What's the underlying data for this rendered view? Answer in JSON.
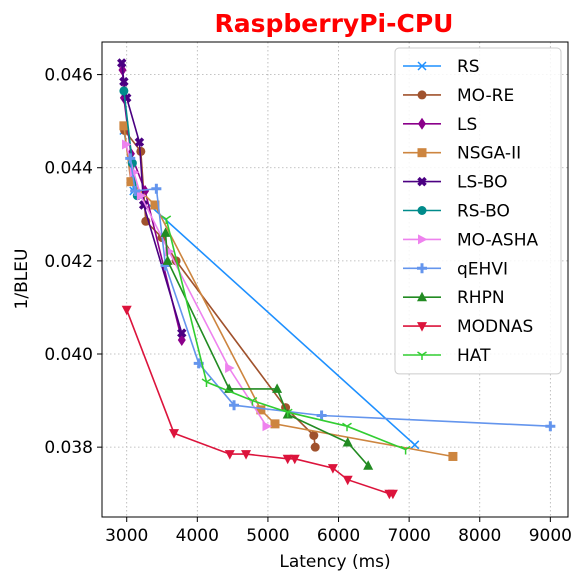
{
  "chart_data": {
    "type": "line",
    "title": "RaspberryPi-CPU",
    "title_color": "#ff0000",
    "xlabel": "Latency (ms)",
    "ylabel": "1/BLEU",
    "xlim": [
      2650,
      9250
    ],
    "ylim": [
      0.0365,
      0.0467
    ],
    "xticks": [
      3000,
      4000,
      5000,
      6000,
      7000,
      8000,
      9000
    ],
    "yticks": [
      0.038,
      0.04,
      0.042,
      0.044,
      0.046
    ],
    "grid": true,
    "legend_position": "top-right",
    "series": [
      {
        "name": "RS",
        "color": "#1e90ff",
        "marker": "x",
        "points": [
          [
            2960,
            0.0448
          ],
          [
            3100,
            0.0435
          ],
          [
            7080,
            0.03805
          ]
        ]
      },
      {
        "name": "MO-RE",
        "color": "#a0522d",
        "marker": "circle",
        "points": [
          [
            2970,
            0.0448
          ],
          [
            3200,
            0.04435
          ],
          [
            3270,
            0.04285
          ],
          [
            3500,
            0.0425
          ],
          [
            3700,
            0.042
          ],
          [
            5250,
            0.03885
          ],
          [
            5650,
            0.03825
          ],
          [
            5670,
            0.038
          ]
        ]
      },
      {
        "name": "LS",
        "color": "#8b008b",
        "marker": "diamond",
        "points": [
          [
            2940,
            0.0461
          ],
          [
            2960,
            0.0455
          ],
          [
            3060,
            0.0443
          ],
          [
            3260,
            0.0435
          ],
          [
            3780,
            0.0403
          ]
        ]
      },
      {
        "name": "NSGA-II",
        "color": "#cd853f",
        "marker": "square",
        "points": [
          [
            2960,
            0.0449
          ],
          [
            3060,
            0.0437
          ],
          [
            3400,
            0.0432
          ],
          [
            4900,
            0.0388
          ],
          [
            5100,
            0.0385
          ],
          [
            7620,
            0.0378
          ]
        ]
      },
      {
        "name": "LS-BO",
        "color": "#4b0082",
        "marker": "x-bold",
        "points": [
          [
            2930,
            0.04625
          ],
          [
            2960,
            0.04585
          ],
          [
            3000,
            0.0455
          ],
          [
            3180,
            0.04455
          ],
          [
            3240,
            0.0432
          ],
          [
            3780,
            0.04045
          ]
        ]
      },
      {
        "name": "RS-BO",
        "color": "#008b8b",
        "marker": "circle",
        "points": [
          [
            2960,
            0.04565
          ],
          [
            3080,
            0.0441
          ],
          [
            3150,
            0.0434
          ]
        ]
      },
      {
        "name": "MO-ASHA",
        "color": "#ee82ee",
        "marker": "triangle-right",
        "points": [
          [
            2990,
            0.0445
          ],
          [
            3100,
            0.0439
          ],
          [
            3200,
            0.0434
          ],
          [
            3600,
            0.0422
          ],
          [
            4450,
            0.0397
          ],
          [
            4980,
            0.03845
          ]
        ]
      },
      {
        "name": "qEHVI",
        "color": "#6495ed",
        "marker": "plus",
        "points": [
          [
            3050,
            0.0442
          ],
          [
            3120,
            0.0435
          ],
          [
            3420,
            0.04355
          ],
          [
            3550,
            0.0419
          ],
          [
            4020,
            0.0398
          ],
          [
            4520,
            0.0389
          ],
          [
            5760,
            0.03868
          ],
          [
            9000,
            0.03845
          ]
        ]
      },
      {
        "name": "RHPN",
        "color": "#228b22",
        "marker": "triangle-up",
        "points": [
          [
            3550,
            0.0426
          ],
          [
            3580,
            0.042
          ],
          [
            4450,
            0.03925
          ],
          [
            5130,
            0.03925
          ],
          [
            5280,
            0.0387
          ],
          [
            6130,
            0.0381
          ],
          [
            6420,
            0.0376
          ]
        ]
      },
      {
        "name": "MODNAS",
        "color": "#dc143c",
        "marker": "triangle-down",
        "points": [
          [
            3000,
            0.04095
          ],
          [
            3670,
            0.0383
          ],
          [
            4460,
            0.03785
          ],
          [
            4690,
            0.03785
          ],
          [
            5280,
            0.03775
          ],
          [
            5380,
            0.03775
          ],
          [
            5920,
            0.03755
          ],
          [
            6130,
            0.0373
          ],
          [
            6720,
            0.037
          ],
          [
            6770,
            0.037
          ]
        ]
      },
      {
        "name": "HAT",
        "color": "#32cd32",
        "marker": "tri-down",
        "points": [
          [
            3560,
            0.0429
          ],
          [
            4130,
            0.0394
          ],
          [
            4780,
            0.039
          ],
          [
            5280,
            0.03875
          ],
          [
            6120,
            0.03845
          ],
          [
            6950,
            0.03795
          ]
        ]
      }
    ]
  }
}
